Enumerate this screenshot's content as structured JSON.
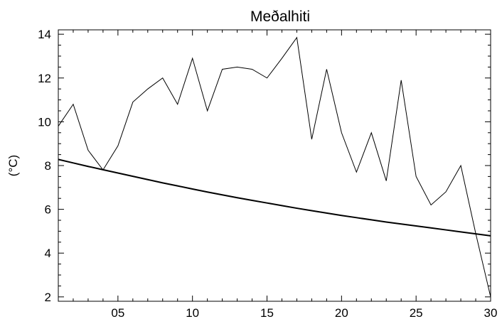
{
  "chart_data": {
    "type": "line",
    "title": "Meðalhiti",
    "xlabel": "",
    "ylabel": "(°C)",
    "xlim": [
      1,
      30
    ],
    "ylim": [
      1.8,
      14.2
    ],
    "xticks": [
      {
        "value": 5,
        "label": "05"
      },
      {
        "value": 10,
        "label": "10"
      },
      {
        "value": 15,
        "label": "15"
      },
      {
        "value": 20,
        "label": "20"
      },
      {
        "value": 25,
        "label": "25"
      },
      {
        "value": 30,
        "label": "30"
      }
    ],
    "yticks": [
      {
        "value": 2,
        "label": "2"
      },
      {
        "value": 4,
        "label": "4"
      },
      {
        "value": 6,
        "label": "6"
      },
      {
        "value": 8,
        "label": "8"
      },
      {
        "value": 10,
        "label": "10"
      },
      {
        "value": 12,
        "label": "12"
      },
      {
        "value": 14,
        "label": "14"
      }
    ],
    "grid": false,
    "colors": {
      "line": "#000000",
      "axis": "#000000"
    },
    "series": [
      {
        "x": [
          1,
          2,
          3,
          4,
          5,
          6,
          7,
          8,
          9,
          10,
          11,
          12,
          13,
          14,
          15,
          16,
          17,
          18,
          19,
          20,
          21,
          22,
          23,
          24,
          25,
          26,
          27,
          28,
          29,
          30
        ],
        "values": [
          9.8,
          10.8,
          8.7,
          7.8,
          8.9,
          10.9,
          11.5,
          12.0,
          10.8,
          12.9,
          10.5,
          12.4,
          12.5,
          12.4,
          12.0,
          12.9,
          13.85,
          9.2,
          12.4,
          9.5,
          7.7,
          9.5,
          7.3,
          11.9,
          7.5,
          6.2,
          6.8,
          8.0,
          4.9,
          2.0
        ],
        "stroke_width": 1
      },
      {
        "x": [
          1,
          2,
          3,
          4,
          5,
          6,
          7,
          8,
          9,
          10,
          11,
          12,
          13,
          14,
          15,
          16,
          17,
          18,
          19,
          20,
          21,
          22,
          23,
          24,
          25,
          26,
          27,
          28,
          29,
          30
        ],
        "values": [
          8.28,
          8.12,
          7.96,
          7.81,
          7.66,
          7.51,
          7.36,
          7.21,
          7.07,
          6.93,
          6.79,
          6.66,
          6.53,
          6.41,
          6.29,
          6.17,
          6.05,
          5.94,
          5.83,
          5.72,
          5.62,
          5.52,
          5.42,
          5.33,
          5.24,
          5.15,
          5.06,
          4.97,
          4.88,
          4.79
        ],
        "stroke_width": 2
      }
    ]
  }
}
